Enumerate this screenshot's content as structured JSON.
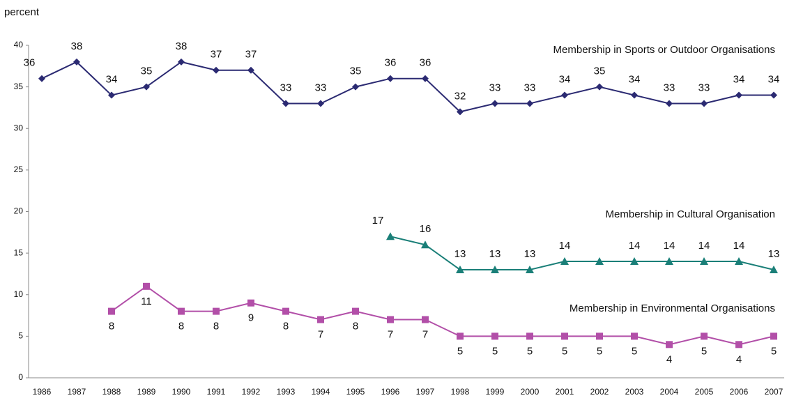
{
  "chart_data": {
    "type": "line",
    "y_label": "percent",
    "categories": [
      "1986",
      "1987",
      "1988",
      "1989",
      "1990",
      "1991",
      "1992",
      "1993",
      "1994",
      "1995",
      "1996",
      "1997",
      "1998",
      "1999",
      "2000",
      "2001",
      "2002",
      "2003",
      "2004",
      "2005",
      "2006",
      "2007"
    ],
    "ylim": [
      0,
      40
    ],
    "yticks": [
      0,
      5,
      10,
      15,
      20,
      25,
      30,
      35,
      40
    ],
    "series": [
      {
        "name": "Membership in Sports or Outdoor Organisations",
        "color": "#2b2a72",
        "marker": "diamond",
        "values": [
          36,
          38,
          34,
          35,
          38,
          37,
          37,
          33,
          33,
          35,
          36,
          36,
          32,
          33,
          33,
          34,
          35,
          34,
          33,
          33,
          34,
          34
        ]
      },
      {
        "name": "Membership in Cultural Organisation",
        "color": "#1a7f78",
        "marker": "triangle",
        "values": [
          null,
          null,
          null,
          null,
          null,
          null,
          null,
          null,
          null,
          null,
          17,
          16,
          13,
          13,
          13,
          14,
          14,
          14,
          14,
          14,
          14,
          13
        ],
        "value_labels": [
          null,
          null,
          null,
          null,
          null,
          null,
          null,
          null,
          null,
          null,
          "17",
          "16",
          "13",
          "13",
          "13",
          "14",
          null,
          "14",
          "14",
          "14",
          "14",
          "13"
        ]
      },
      {
        "name": "Membership in Environmental Organisations",
        "color": "#b24fa8",
        "marker": "square",
        "values": [
          null,
          null,
          8,
          11,
          8,
          8,
          9,
          8,
          7,
          8,
          7,
          7,
          5,
          5,
          5,
          5,
          5,
          5,
          4,
          5,
          4,
          5
        ]
      }
    ]
  }
}
